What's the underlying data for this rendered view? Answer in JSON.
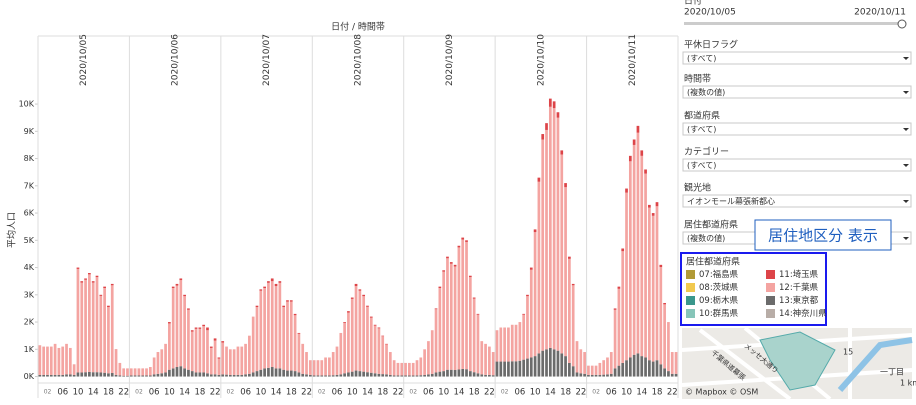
{
  "chart_data": {
    "type": "bar",
    "stacked": true,
    "title": "日付 / 時間帯",
    "y_label": "平均人口",
    "panels": [
      "2020/10/05",
      "2020/10/06",
      "2020/10/07",
      "2020/10/08",
      "2020/10/09",
      "2020/10/10",
      "2020/10/11"
    ],
    "categories": [
      null,
      null,
      "02",
      null,
      null,
      null,
      "06",
      null,
      null,
      null,
      "10",
      null,
      null,
      null,
      "14",
      null,
      null,
      null,
      "18",
      null,
      null,
      null,
      "22",
      null
    ],
    "ylim": [
      -200,
      10700
    ],
    "yticks": [
      {
        "value": 0,
        "label": "0K"
      },
      {
        "value": 1000,
        "label": "1K"
      },
      {
        "value": 2000,
        "label": "2K"
      },
      {
        "value": 3000,
        "label": "3K"
      },
      {
        "value": 4000,
        "label": "4K"
      },
      {
        "value": 5000,
        "label": "5K"
      },
      {
        "value": 6000,
        "label": "6K"
      },
      {
        "value": 7000,
        "label": "7K"
      },
      {
        "value": 8000,
        "label": "8K"
      },
      {
        "value": 9000,
        "label": "9K"
      },
      {
        "value": 10000,
        "label": "10K"
      }
    ],
    "legend_title": "居住都道府県",
    "series": [
      {
        "name": "07:福島県",
        "color": "#b19a36"
      },
      {
        "name": "08:茨城県",
        "color": "#f1c94f"
      },
      {
        "name": "09:栃木県",
        "color": "#3a978c"
      },
      {
        "name": "10:群馬県",
        "color": "#86c5b9"
      },
      {
        "name": "11:埼玉県",
        "color": "#dd4448",
        "values": [
          [
            0,
            0,
            0,
            0,
            0,
            0,
            0,
            0,
            0,
            0,
            50,
            50,
            50,
            50,
            50,
            50,
            40,
            50,
            50,
            50,
            10,
            0,
            0,
            0
          ],
          [
            0,
            0,
            0,
            0,
            0,
            0,
            0,
            0,
            0,
            0,
            50,
            50,
            60,
            60,
            50,
            50,
            50,
            50,
            50,
            50,
            100,
            50,
            80,
            40
          ],
          [
            50,
            0,
            0,
            0,
            0,
            0,
            0,
            0,
            0,
            50,
            50,
            50,
            60,
            100,
            80,
            60,
            50,
            50,
            50,
            50,
            30,
            0,
            0,
            0
          ],
          [
            0,
            0,
            0,
            0,
            0,
            0,
            0,
            0,
            30,
            50,
            50,
            80,
            50,
            50,
            40,
            40,
            30,
            30,
            20,
            20,
            0,
            0,
            0,
            0
          ],
          [
            0,
            0,
            0,
            0,
            0,
            0,
            0,
            0,
            30,
            50,
            50,
            60,
            60,
            60,
            60,
            70,
            60,
            50,
            40,
            30,
            0,
            0,
            0,
            0
          ],
          [
            0,
            0,
            0,
            0,
            0,
            0,
            0,
            30,
            50,
            80,
            100,
            150,
            200,
            250,
            300,
            250,
            200,
            150,
            150,
            80,
            50,
            0,
            0,
            0
          ],
          [
            0,
            0,
            0,
            0,
            0,
            0,
            0,
            50,
            80,
            100,
            150,
            200,
            200,
            250,
            200,
            150,
            100,
            100,
            150,
            80,
            50,
            0,
            0,
            0
          ]
        ]
      },
      {
        "name": "12:千葉県",
        "color": "#f4a4a1",
        "values": [
          [
            1090,
            1040,
            1040,
            1040,
            1140,
            990,
            1040,
            1120,
            970,
            390,
            3800,
            3300,
            3390,
            3580,
            3290,
            3490,
            2810,
            3110,
            2430,
            3220,
            930,
            460,
            270,
            270
          ],
          [
            260,
            260,
            260,
            260,
            260,
            310,
            620,
            800,
            880,
            1050,
            1700,
            2950,
            2990,
            3160,
            2650,
            2200,
            1450,
            1600,
            1600,
            1700,
            1580,
            970,
            1240,
            600
          ],
          [
            1170,
            1030,
            940,
            940,
            1040,
            1040,
            1120,
            1400,
            2050,
            2350,
            2900,
            2950,
            3120,
            3150,
            3020,
            3140,
            2300,
            2530,
            2530,
            2050,
            1420,
            1100,
            820,
            540
          ],
          [
            560,
            560,
            560,
            660,
            660,
            850,
            1040,
            1520,
            1850,
            2200,
            2670,
            3100,
            2950,
            2770,
            2400,
            2020,
            1750,
            1670,
            1390,
            1100,
            840,
            560,
            460,
            460
          ],
          [
            460,
            460,
            460,
            560,
            650,
            940,
            1220,
            1600,
            2320,
            3070,
            3650,
            4090,
            3890,
            3800,
            4480,
            4750,
            4670,
            3450,
            2700,
            2150,
            1220,
            1140,
            1040,
            850
          ],
          [
            1150,
            1250,
            1250,
            1250,
            1340,
            1340,
            1420,
            1650,
            2290,
            3220,
            4550,
            6300,
            7750,
            8050,
            8850,
            8850,
            8550,
            7300,
            6200,
            3820,
            2970,
            1150,
            880,
            800
          ],
          [
            340,
            340,
            340,
            440,
            530,
            620,
            800,
            2150,
            2820,
            4100,
            6150,
            7200,
            7700,
            8100,
            7350,
            6750,
            5600,
            5350,
            5650,
            3570,
            2350,
            1800,
            800,
            800
          ]
        ]
      },
      {
        "name": "13:東京都",
        "color": "#6b6b6b",
        "values": [
          [
            60,
            60,
            60,
            60,
            60,
            60,
            60,
            80,
            80,
            60,
            150,
            150,
            160,
            170,
            160,
            160,
            150,
            140,
            120,
            130,
            60,
            40,
            30,
            30
          ],
          [
            40,
            40,
            40,
            40,
            40,
            40,
            80,
            100,
            120,
            150,
            250,
            300,
            350,
            380,
            300,
            250,
            200,
            150,
            150,
            150,
            120,
            80,
            80,
            60
          ],
          [
            80,
            70,
            60,
            60,
            60,
            60,
            80,
            100,
            150,
            200,
            250,
            300,
            320,
            350,
            300,
            300,
            250,
            220,
            220,
            200,
            150,
            100,
            80,
            60
          ],
          [
            40,
            40,
            40,
            40,
            40,
            50,
            60,
            80,
            120,
            150,
            180,
            220,
            200,
            180,
            160,
            140,
            120,
            100,
            90,
            80,
            60,
            40,
            40,
            40
          ],
          [
            40,
            40,
            40,
            40,
            50,
            60,
            80,
            100,
            150,
            180,
            200,
            250,
            250,
            240,
            260,
            280,
            270,
            200,
            160,
            120,
            80,
            60,
            60,
            50
          ],
          [
            550,
            550,
            550,
            550,
            560,
            560,
            580,
            620,
            660,
            700,
            750,
            850,
            950,
            1000,
            1050,
            1000,
            950,
            850,
            750,
            500,
            380,
            150,
            120,
            100
          ],
          [
            60,
            60,
            60,
            60,
            70,
            80,
            100,
            300,
            400,
            500,
            600,
            700,
            800,
            850,
            750,
            700,
            600,
            550,
            600,
            450,
            300,
            200,
            100,
            100
          ]
        ]
      },
      {
        "name": "14:神奈川県",
        "color": "#b8ada7"
      }
    ]
  },
  "sidebar": {
    "date_title": "日付",
    "date_from": "2020/10/05",
    "date_to": "2020/10/11",
    "filters": [
      {
        "label": "平休日フラグ",
        "value": "(すべて)"
      },
      {
        "label": "時間帯",
        "value": "(複数の値)"
      },
      {
        "label": "都道府県",
        "value": "(すべて)"
      },
      {
        "label": "カテゴリー",
        "value": "(すべて)"
      },
      {
        "label": "観光地",
        "value": "イオンモール幕張新都心"
      },
      {
        "label": "居住都道府県",
        "value": "(複数の値)"
      }
    ],
    "callout": "居住地区分 表示"
  },
  "map": {
    "labels": [
      "15",
      "一丁目",
      "1 km",
      "© Mapbox © OSM",
      "千葉県道幕張",
      "メッセ大通り"
    ]
  }
}
